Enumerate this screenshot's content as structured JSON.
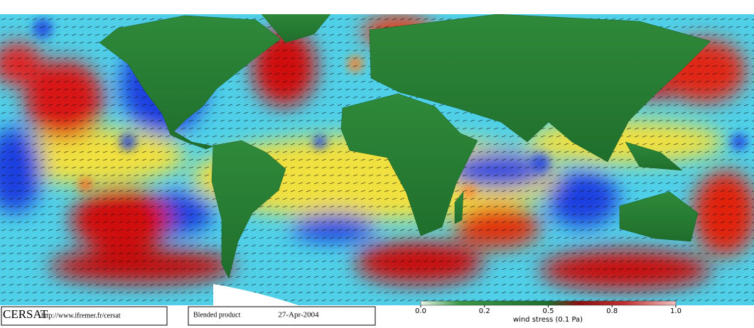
{
  "footer": {
    "logo": "CERSAT",
    "url": "http://www.ifremer.fr/cersat",
    "product": "Blended product",
    "date": "27-Apr-2004"
  },
  "colorbar": {
    "label": "wind stress (0.1 Pa)",
    "ticks": [
      {
        "value": 0,
        "label": "0.0"
      },
      0.2,
      0.5,
      0.8,
      {
        "value": 1,
        "label": "1.0"
      }
    ]
  }
}
